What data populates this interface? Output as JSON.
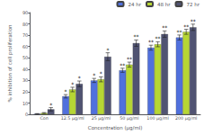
{
  "chart_data": {
    "type": "bar",
    "categories": [
      "Con",
      "12.5 μg/ml",
      "25 μg/ml",
      "50 μg/ml",
      "100 μg/ml",
      "200 μg/ml"
    ],
    "xlabel": "Concentration (μg/ml)",
    "ylabel": "% inhibition of cell proliferation",
    "series": [
      {
        "name": "24 hr",
        "values": [
          0.5,
          16,
          30,
          39,
          59,
          68
        ],
        "errors": [
          0.2,
          1.5,
          1.8,
          1.8,
          2.2,
          2.2
        ],
        "annotations": [
          null,
          "*",
          "*",
          "**",
          "**",
          "**"
        ]
      },
      {
        "name": "48 hr",
        "values": [
          1.2,
          22,
          31,
          44,
          62,
          73
        ],
        "errors": [
          0.4,
          2.0,
          2.2,
          2.2,
          2.2,
          2.2
        ],
        "annotations": [
          null,
          "*",
          "*",
          "**",
          "**",
          "**"
        ]
      },
      {
        "name": "72 hr",
        "values": [
          4.5,
          27,
          51,
          63,
          71,
          77
        ],
        "errors": [
          1.5,
          2.5,
          3.5,
          2.8,
          2.8,
          2.8
        ],
        "annotations": [
          "*",
          "*",
          "*",
          "**",
          "**",
          "**"
        ]
      }
    ],
    "ylim": [
      0,
      90
    ],
    "yticks": [
      0,
      10,
      20,
      30,
      40,
      50,
      60,
      70,
      80,
      90
    ],
    "grid": false,
    "legend": "upper right"
  }
}
